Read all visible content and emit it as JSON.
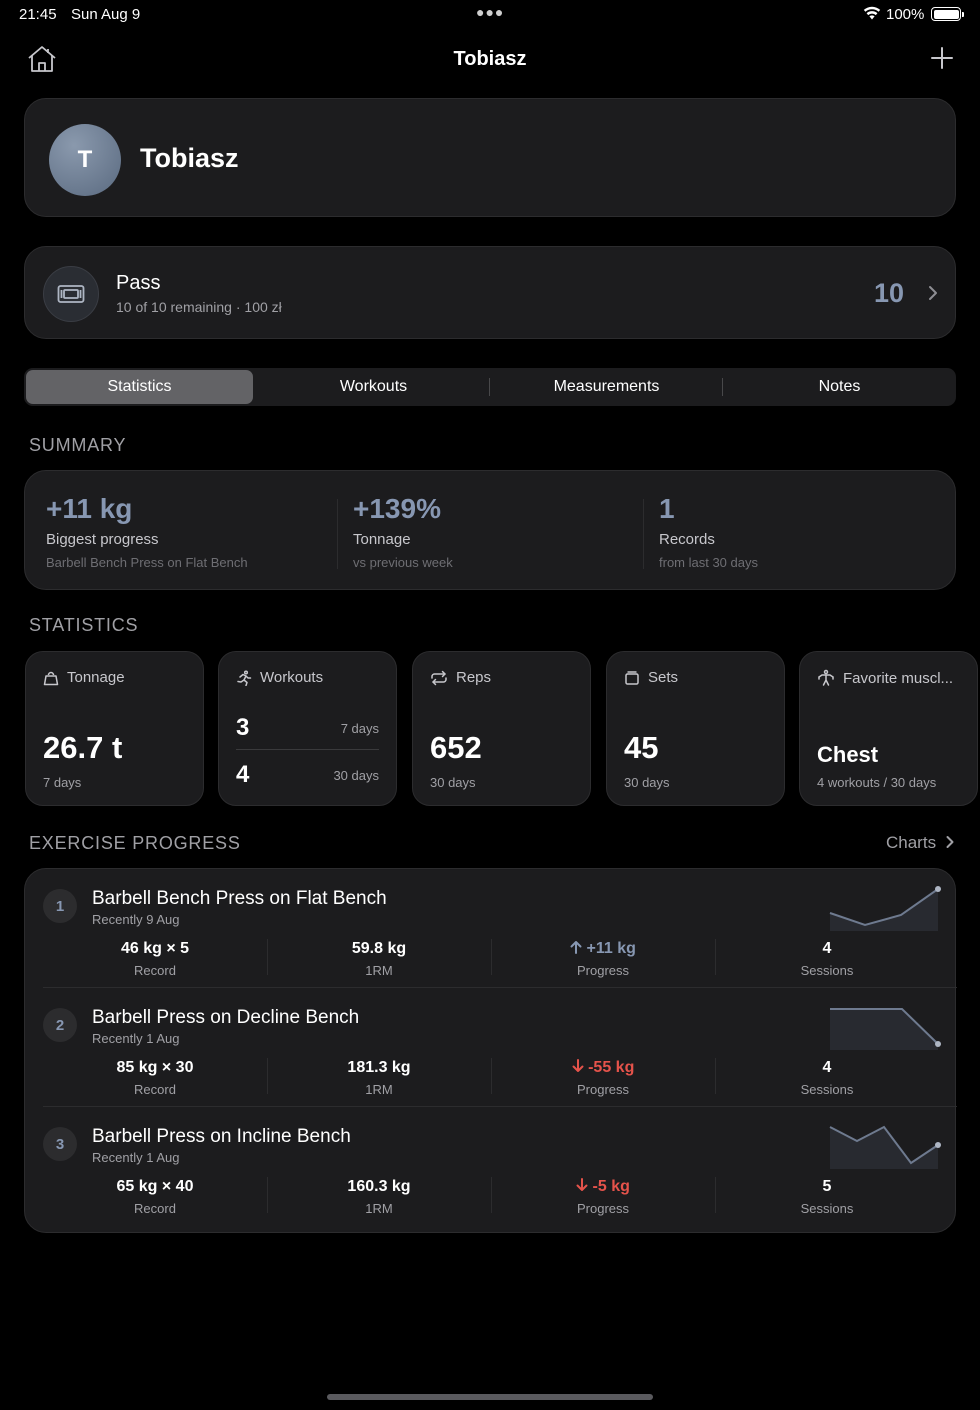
{
  "status_bar": {
    "time": "21:45",
    "date": "Sun Aug 9",
    "battery": "100%"
  },
  "nav": {
    "title": "Tobiasz"
  },
  "profile": {
    "initial": "T",
    "name": "Tobiasz"
  },
  "pass": {
    "title": "Pass",
    "subtitle": "10 of 10 remaining · 100 zł",
    "count": "10"
  },
  "tabs": [
    {
      "label": "Statistics"
    },
    {
      "label": "Workouts"
    },
    {
      "label": "Measurements"
    },
    {
      "label": "Notes"
    }
  ],
  "summary": {
    "heading": "SUMMARY",
    "items": [
      {
        "value": "+11 kg",
        "label": "Biggest progress",
        "sub": "Barbell Bench Press on Flat Bench"
      },
      {
        "value": "+139%",
        "label": "Tonnage",
        "sub": "vs previous week"
      },
      {
        "value": "1",
        "label": "Records",
        "sub": "from last 30 days"
      }
    ]
  },
  "statistics": {
    "heading": "STATISTICS",
    "tonnage": {
      "label": "Tonnage",
      "value": "26.7 t",
      "sub": "7 days"
    },
    "workouts": {
      "label": "Workouts",
      "rows": [
        {
          "n": "3",
          "d": "7 days"
        },
        {
          "n": "4",
          "d": "30 days"
        }
      ]
    },
    "reps": {
      "label": "Reps",
      "value": "652",
      "sub": "30 days"
    },
    "sets": {
      "label": "Sets",
      "value": "45",
      "sub": "30 days"
    },
    "favorite": {
      "label": "Favorite muscl...",
      "value": "Chest",
      "sub": "4 workouts / 30 days"
    }
  },
  "exercise_progress": {
    "heading": "EXERCISE PROGRESS",
    "charts_label": "Charts",
    "metric_labels": {
      "record": "Record",
      "one_rm": "1RM",
      "progress": "Progress",
      "sessions": "Sessions"
    },
    "items": [
      {
        "index": "1",
        "name": "Barbell Bench Press on Flat Bench",
        "recent": "Recently 9 Aug",
        "record": "46 kg × 5",
        "one_rm": "59.8 kg",
        "progress": "+11 kg",
        "direction": "up",
        "sessions": "4"
      },
      {
        "index": "2",
        "name": "Barbell Press on Decline Bench",
        "recent": "Recently 1 Aug",
        "record": "85 kg × 30",
        "one_rm": "181.3 kg",
        "progress": "-55 kg",
        "direction": "down",
        "sessions": "4"
      },
      {
        "index": "3",
        "name": "Barbell Press on Incline Bench",
        "recent": "Recently 1 Aug",
        "record": "65 kg × 40",
        "one_rm": "160.3 kg",
        "progress": "-5 kg",
        "direction": "down",
        "sessions": "5"
      }
    ]
  },
  "colors": {
    "accent": "#8797b2",
    "negative": "#e5534b",
    "card": "#1c1c1e",
    "background": "#000000"
  }
}
